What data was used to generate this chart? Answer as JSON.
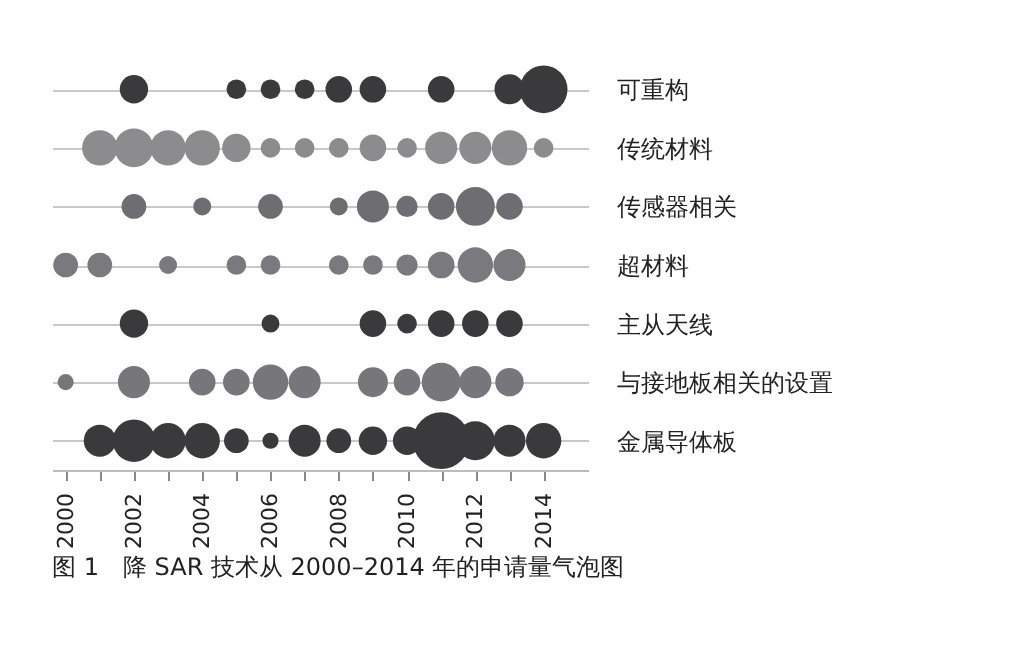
{
  "chart_data": {
    "type": "bubble",
    "orientation": "horizontal",
    "title": "图 1　降 SAR 技术从 2000–2014 年的申请量气泡图",
    "categories": [
      "可重构",
      "传统材料",
      "传感器相关",
      "超材料",
      "主从天线",
      "与接地板相关的设置",
      "金属导体板"
    ],
    "xlim": [
      1999.6,
      2015.3
    ],
    "xticks": [
      2000,
      {
        "value": 2001,
        "label": null
      },
      2002,
      {
        "value": 2003,
        "label": null
      },
      2004,
      {
        "value": 2005,
        "label": null
      },
      2006,
      {
        "value": 2007,
        "label": null
      },
      2008,
      {
        "value": 2009,
        "label": null
      },
      2010,
      {
        "value": 2011,
        "label": null
      },
      2012,
      {
        "value": 2013,
        "label": null
      },
      2014
    ],
    "grid": "y",
    "legend": false,
    "series": [
      {
        "values": [
          null,
          null,
          null,
          2000,
          null,
          2000,
          null
        ],
        "sizes": [
          null,
          null,
          null,
          0.19,
          null,
          0.08,
          null
        ],
        "colors": [
          null,
          null,
          null,
          "#7a7a7e",
          null,
          "#77777b",
          null
        ]
      },
      {
        "values": [
          null,
          2001,
          null,
          2001,
          null,
          null,
          2001
        ],
        "sizes": [
          null,
          0.39,
          null,
          0.19,
          null,
          null,
          0.32
        ],
        "colors": [
          null,
          "#8c8c8e",
          null,
          "#7a7a7e",
          null,
          null,
          "#3a3a3d"
        ]
      },
      {
        "values": [
          2002,
          2002,
          2002,
          null,
          2002,
          2002,
          2002
        ],
        "sizes": [
          0.25,
          0.47,
          0.19,
          null,
          0.25,
          0.32,
          0.56
        ],
        "colors": [
          "#3a3a3d",
          "#8c8c8e",
          "#6e6e72",
          null,
          "#3a3a3d",
          "#77777b",
          "#3a3a3d"
        ]
      },
      {
        "values": [
          null,
          2003,
          null,
          2003,
          null,
          null,
          2003
        ],
        "sizes": [
          null,
          0.39,
          null,
          0.1,
          null,
          null,
          0.39
        ],
        "colors": [
          null,
          "#8c8c8e",
          null,
          "#7a7a7e",
          null,
          null,
          "#3a3a3d"
        ]
      },
      {
        "values": [
          null,
          2004,
          2004,
          null,
          null,
          2004,
          2004
        ],
        "sizes": [
          null,
          0.39,
          0.1,
          null,
          null,
          0.22,
          0.39
        ],
        "colors": [
          null,
          "#8c8c8e",
          "#6e6e72",
          null,
          null,
          "#77777b",
          "#3a3a3d"
        ]
      },
      {
        "values": [
          2005,
          2005,
          null,
          2005,
          null,
          2005,
          2005
        ],
        "sizes": [
          0.12,
          0.25,
          null,
          0.12,
          null,
          0.22,
          0.19
        ],
        "colors": [
          "#3a3a3d",
          "#8c8c8e",
          null,
          "#7a7a7e",
          null,
          "#77777b",
          "#3a3a3d"
        ]
      },
      {
        "values": [
          2006,
          2006,
          2006,
          2006,
          2006,
          2006,
          2006
        ],
        "sizes": [
          0.12,
          0.12,
          0.19,
          0.12,
          0.1,
          0.39,
          0.08
        ],
        "colors": [
          "#3a3a3d",
          "#8c8c8e",
          "#6e6e72",
          "#7a7a7e",
          "#3a3a3d",
          "#77777b",
          "#3a3a3d"
        ]
      },
      {
        "values": [
          2007,
          2007,
          null,
          null,
          null,
          2007,
          2007
        ],
        "sizes": [
          0.12,
          0.12,
          null,
          null,
          null,
          0.32,
          0.32
        ],
        "colors": [
          "#3a3a3d",
          "#8c8c8e",
          null,
          null,
          null,
          "#77777b",
          "#3a3a3d"
        ]
      },
      {
        "values": [
          2008,
          2008,
          2008,
          2008,
          null,
          null,
          2008
        ],
        "sizes": [
          0.22,
          0.12,
          0.1,
          0.12,
          null,
          null,
          0.19
        ],
        "colors": [
          "#3a3a3d",
          "#8c8c8e",
          "#6e6e72",
          "#7a7a7e",
          null,
          null,
          "#3a3a3d"
        ]
      },
      {
        "values": [
          2009,
          2009,
          2009,
          2009,
          2009,
          2009,
          2009
        ],
        "sizes": [
          0.22,
          0.22,
          0.32,
          0.12,
          0.22,
          0.28,
          0.25
        ],
        "colors": [
          "#3a3a3d",
          "#8c8c8e",
          "#6e6e72",
          "#7a7a7e",
          "#3a3a3d",
          "#77777b",
          "#3a3a3d"
        ]
      },
      {
        "values": [
          null,
          2010,
          2010,
          2010,
          2010,
          2010,
          2010
        ],
        "sizes": [
          null,
          0.12,
          0.14,
          0.14,
          0.12,
          0.22,
          0.25
        ],
        "colors": [
          null,
          "#8c8c8e",
          "#6e6e72",
          "#7a7a7e",
          "#3a3a3d",
          "#77777b",
          "#3a3a3d"
        ]
      },
      {
        "values": [
          2011,
          2011,
          2011,
          2011,
          2011,
          2011,
          2011
        ],
        "sizes": [
          0.22,
          0.32,
          0.22,
          0.22,
          0.22,
          0.47,
          1
        ],
        "colors": [
          "#3a3a3d",
          "#8c8c8e",
          "#6e6e72",
          "#7a7a7e",
          "#3a3a3d",
          "#77777b",
          "#3a3a3d"
        ]
      },
      {
        "values": [
          null,
          2012,
          2012,
          2012,
          2012,
          2012,
          2012
        ],
        "sizes": [
          null,
          0.32,
          0.47,
          0.39,
          0.22,
          0.32,
          0.47
        ],
        "colors": [
          null,
          "#8c8c8e",
          "#6e6e72",
          "#7a7a7e",
          "#3a3a3d",
          "#77777b",
          "#3a3a3d"
        ]
      },
      {
        "values": [
          2013,
          2013,
          2013,
          2013,
          2013,
          2013,
          2013
        ],
        "sizes": [
          0.28,
          0.39,
          0.22,
          0.32,
          0.22,
          0.25,
          0.32
        ],
        "colors": [
          "#3a3a3d",
          "#8c8c8e",
          "#6e6e72",
          "#7a7a7e",
          "#3a3a3d",
          "#77777b",
          "#3a3a3d"
        ]
      },
      {
        "values": [
          2014,
          2014,
          null,
          null,
          null,
          null,
          2014
        ],
        "sizes": [
          0.71,
          0.12,
          null,
          null,
          null,
          null,
          0.39
        ],
        "colors": [
          "#3a3a3d",
          "#8c8c8e",
          null,
          null,
          null,
          null,
          "#3a3a3d"
        ]
      }
    ]
  }
}
